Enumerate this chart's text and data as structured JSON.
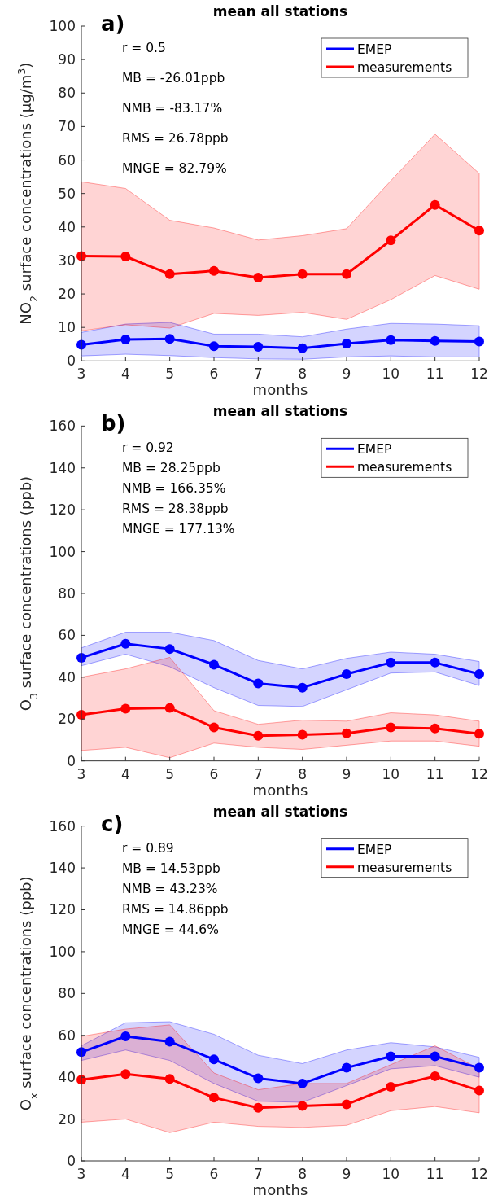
{
  "chart_data": [
    {
      "type": "line",
      "title": "mean all stations",
      "xlabel": "months",
      "ylabel": "NO$_{2}$ surface concentrations (μg/m$^{3}$)",
      "annotations": [
        "a)",
        "r = 0.5",
        "MB = -26.01ppb",
        "NMB = -83.17%",
        "RMS = 26.78ppb",
        "MNGE = 82.79%"
      ],
      "x": [
        3,
        4,
        5,
        6,
        7,
        8,
        9,
        10,
        11,
        12
      ],
      "xlim": [
        3,
        12
      ],
      "xticks": [
        3,
        4,
        5,
        6,
        7,
        8,
        9,
        10,
        11,
        12
      ],
      "ylim": [
        0,
        100
      ],
      "yticks": [
        0,
        10,
        20,
        30,
        40,
        50,
        60,
        70,
        80,
        90,
        100
      ],
      "legend": "top right",
      "marker": "circle",
      "series": [
        {
          "name": "EMEP",
          "color": "#0000ff",
          "values": [
            4.8,
            6.4,
            6.6,
            4.4,
            4.2,
            3.8,
            5.2,
            6.2,
            6.0,
            5.8
          ],
          "lower": [
            1.5,
            2,
            1.6,
            1,
            0.6,
            0.5,
            1.2,
            1.5,
            1.2,
            1.2
          ],
          "upper": [
            8.5,
            11,
            11.5,
            8,
            8,
            7.2,
            9.5,
            11.2,
            11,
            10.5
          ]
        },
        {
          "name": "measurements",
          "color": "#ff0000",
          "values": [
            31.3,
            31.2,
            25.9,
            26.9,
            24.9,
            25.9,
            25.9,
            36,
            46.6,
            38.9
          ],
          "lower": [
            9,
            10.8,
            9.8,
            14.2,
            13.6,
            14.5,
            12.4,
            18.3,
            25.5,
            21.4
          ],
          "upper": [
            53.5,
            51.5,
            42,
            39.7,
            36.1,
            37.4,
            39.5,
            53.8,
            67.7,
            56
          ]
        }
      ]
    },
    {
      "type": "line",
      "title": "mean all stations",
      "xlabel": "months",
      "ylabel": "O$_{3}$ surface concentrations (ppb)",
      "annotations": [
        "b)",
        "r = 0.92",
        "MB = 28.25ppb",
        "NMB = 166.35%",
        "RMS = 28.38ppb",
        "MNGE = 177.13%"
      ],
      "x": [
        3,
        4,
        5,
        6,
        7,
        8,
        9,
        10,
        11,
        12
      ],
      "xlim": [
        3,
        12
      ],
      "xticks": [
        3,
        4,
        5,
        6,
        7,
        8,
        9,
        10,
        11,
        12
      ],
      "ylim": [
        0,
        160
      ],
      "yticks": [
        0,
        20,
        40,
        60,
        80,
        100,
        120,
        140,
        160
      ],
      "legend": "top right",
      "marker": "circle",
      "series": [
        {
          "name": "EMEP",
          "color": "#0000ff",
          "values": [
            49.3,
            56,
            53.5,
            46,
            37,
            35,
            41.5,
            47,
            47,
            41.5
          ],
          "lower": [
            45.5,
            51,
            45,
            35,
            26.5,
            26,
            34,
            42,
            42.5,
            36
          ],
          "upper": [
            54,
            61.5,
            61.5,
            57.5,
            48,
            44,
            49,
            52,
            51,
            47.5
          ]
        },
        {
          "name": "measurements",
          "color": "#ff0000",
          "values": [
            22,
            25,
            25.3,
            16,
            12,
            12.5,
            13.2,
            16,
            15.5,
            13
          ],
          "lower": [
            5,
            6.5,
            1.5,
            8.5,
            6.5,
            5.5,
            7.5,
            9.5,
            9.5,
            7
          ],
          "upper": [
            40,
            44,
            49.5,
            24,
            17.5,
            19.5,
            19,
            23,
            22,
            19
          ]
        }
      ]
    },
    {
      "type": "line",
      "title": "mean all stations",
      "xlabel": "months",
      "ylabel": "O$_{x}$ surface concentrations (ppb)",
      "annotations": [
        "c)",
        "r = 0.89",
        "MB = 14.53ppb",
        "NMB = 43.23%",
        "RMS = 14.86ppb",
        "MNGE = 44.6%"
      ],
      "x": [
        3,
        4,
        5,
        6,
        7,
        8,
        9,
        10,
        11,
        12
      ],
      "xlim": [
        3,
        12
      ],
      "xticks": [
        3,
        4,
        5,
        6,
        7,
        8,
        9,
        10,
        11,
        12
      ],
      "ylim": [
        0,
        160
      ],
      "yticks": [
        0,
        20,
        40,
        60,
        80,
        100,
        120,
        140,
        160
      ],
      "legend": "top right",
      "marker": "circle",
      "series": [
        {
          "name": "EMEP",
          "color": "#0000ff",
          "values": [
            52,
            59.5,
            57,
            48.5,
            39.5,
            37,
            44.5,
            50,
            50,
            44.5
          ],
          "lower": [
            48,
            53,
            48,
            37,
            28.5,
            28,
            36,
            44,
            45.5,
            40
          ],
          "upper": [
            55,
            66,
            66.5,
            60.5,
            50.5,
            46.5,
            53,
            56.5,
            54.5,
            49.5
          ]
        },
        {
          "name": "measurements",
          "color": "#ff0000",
          "values": [
            38.8,
            41.5,
            39.2,
            30.2,
            25.4,
            26.3,
            27,
            35.4,
            40.5,
            33.6
          ],
          "lower": [
            18.5,
            20,
            13.5,
            18.5,
            16.5,
            16,
            17,
            24,
            26,
            23
          ],
          "upper": [
            59.5,
            63,
            65,
            42,
            34,
            37,
            37,
            46,
            55,
            44
          ]
        }
      ]
    }
  ]
}
